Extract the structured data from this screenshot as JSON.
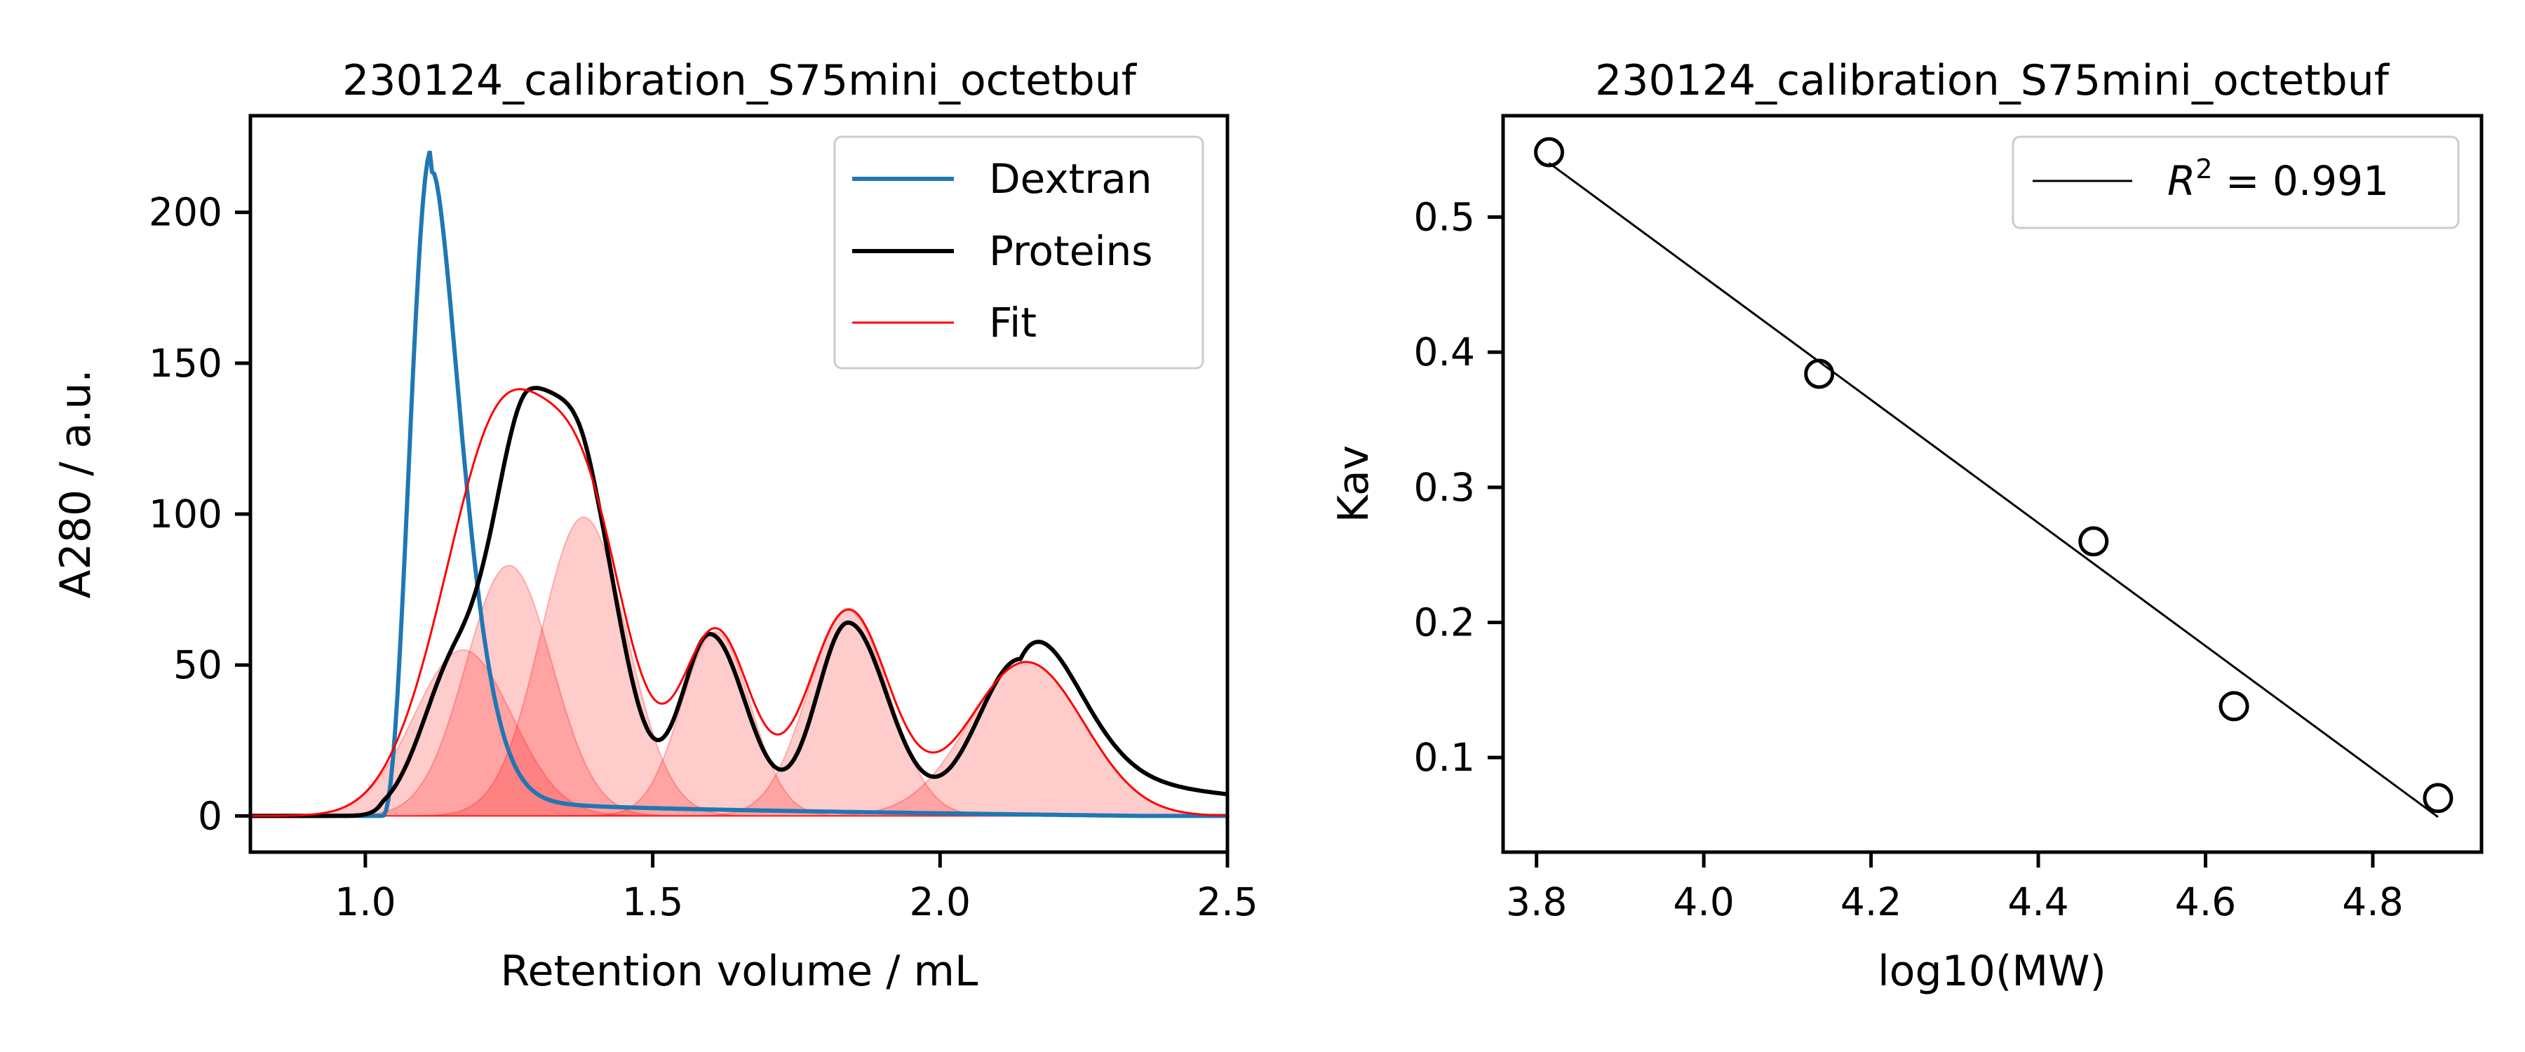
{
  "chart_data": [
    {
      "type": "line",
      "title": "230124_calibration_S75mini_octetbuf",
      "xlabel": "Retention volume / mL",
      "ylabel": "A280 / a.u.",
      "xlim": [
        0.8,
        2.5
      ],
      "ylim": [
        -12,
        232
      ],
      "xticks": [
        1.0,
        1.5,
        2.0,
        2.5
      ],
      "yticks": [
        0,
        50,
        100,
        150,
        200
      ],
      "grid": false,
      "legend_position": "top-right",
      "legend": [
        {
          "label": "Dextran",
          "color": "#1f77b4"
        },
        {
          "label": "Proteins",
          "color": "#000000"
        },
        {
          "label": "Fit",
          "color": "#ff0000"
        }
      ],
      "dextran_peak": {
        "x": 1.115,
        "y": 221,
        "tail_y_at_2_5": 0
      },
      "protein_components": [
        {
          "center": 1.17,
          "height": 55,
          "width": 0.085
        },
        {
          "center": 1.25,
          "height": 83,
          "width": 0.075
        },
        {
          "center": 1.38,
          "height": 99,
          "width": 0.075
        },
        {
          "center": 1.61,
          "height": 61,
          "width": 0.06
        },
        {
          "center": 1.84,
          "height": 68,
          "width": 0.07
        },
        {
          "center": 2.15,
          "height": 51,
          "width": 0.1
        }
      ],
      "protein_trace_peaks": [
        {
          "x": 1.16,
          "y": 59
        },
        {
          "x": 1.3,
          "y": 150
        },
        {
          "x": 1.6,
          "y": 68
        },
        {
          "x": 1.84,
          "y": 69
        },
        {
          "x": 2.14,
          "y": 56
        }
      ],
      "fit_max": {
        "x": 1.33,
        "y": 146
      }
    },
    {
      "type": "scatter",
      "title": "230124_calibration_S75mini_octetbuf",
      "xlabel": "log10(MW)",
      "ylabel": "Kav",
      "xlim": [
        3.76,
        4.93
      ],
      "ylim": [
        0.03,
        0.575
      ],
      "xticks": [
        3.8,
        4.0,
        4.2,
        4.4,
        4.6,
        4.8
      ],
      "yticks": [
        0.1,
        0.2,
        0.3,
        0.4,
        0.5
      ],
      "grid": false,
      "legend_position": "top-right",
      "points": [
        {
          "x": 3.815,
          "y": 0.548
        },
        {
          "x": 4.138,
          "y": 0.384
        },
        {
          "x": 4.466,
          "y": 0.26
        },
        {
          "x": 4.634,
          "y": 0.138
        },
        {
          "x": 4.878,
          "y": 0.07
        }
      ],
      "fit_line": {
        "x": [
          3.815,
          4.878
        ],
        "y": [
          0.54,
          0.056
        ]
      },
      "legend": [
        {
          "label_prefix": "R",
          "label_sup": "2",
          "label_suffix": " = 0.991",
          "color": "#000000"
        }
      ]
    }
  ]
}
